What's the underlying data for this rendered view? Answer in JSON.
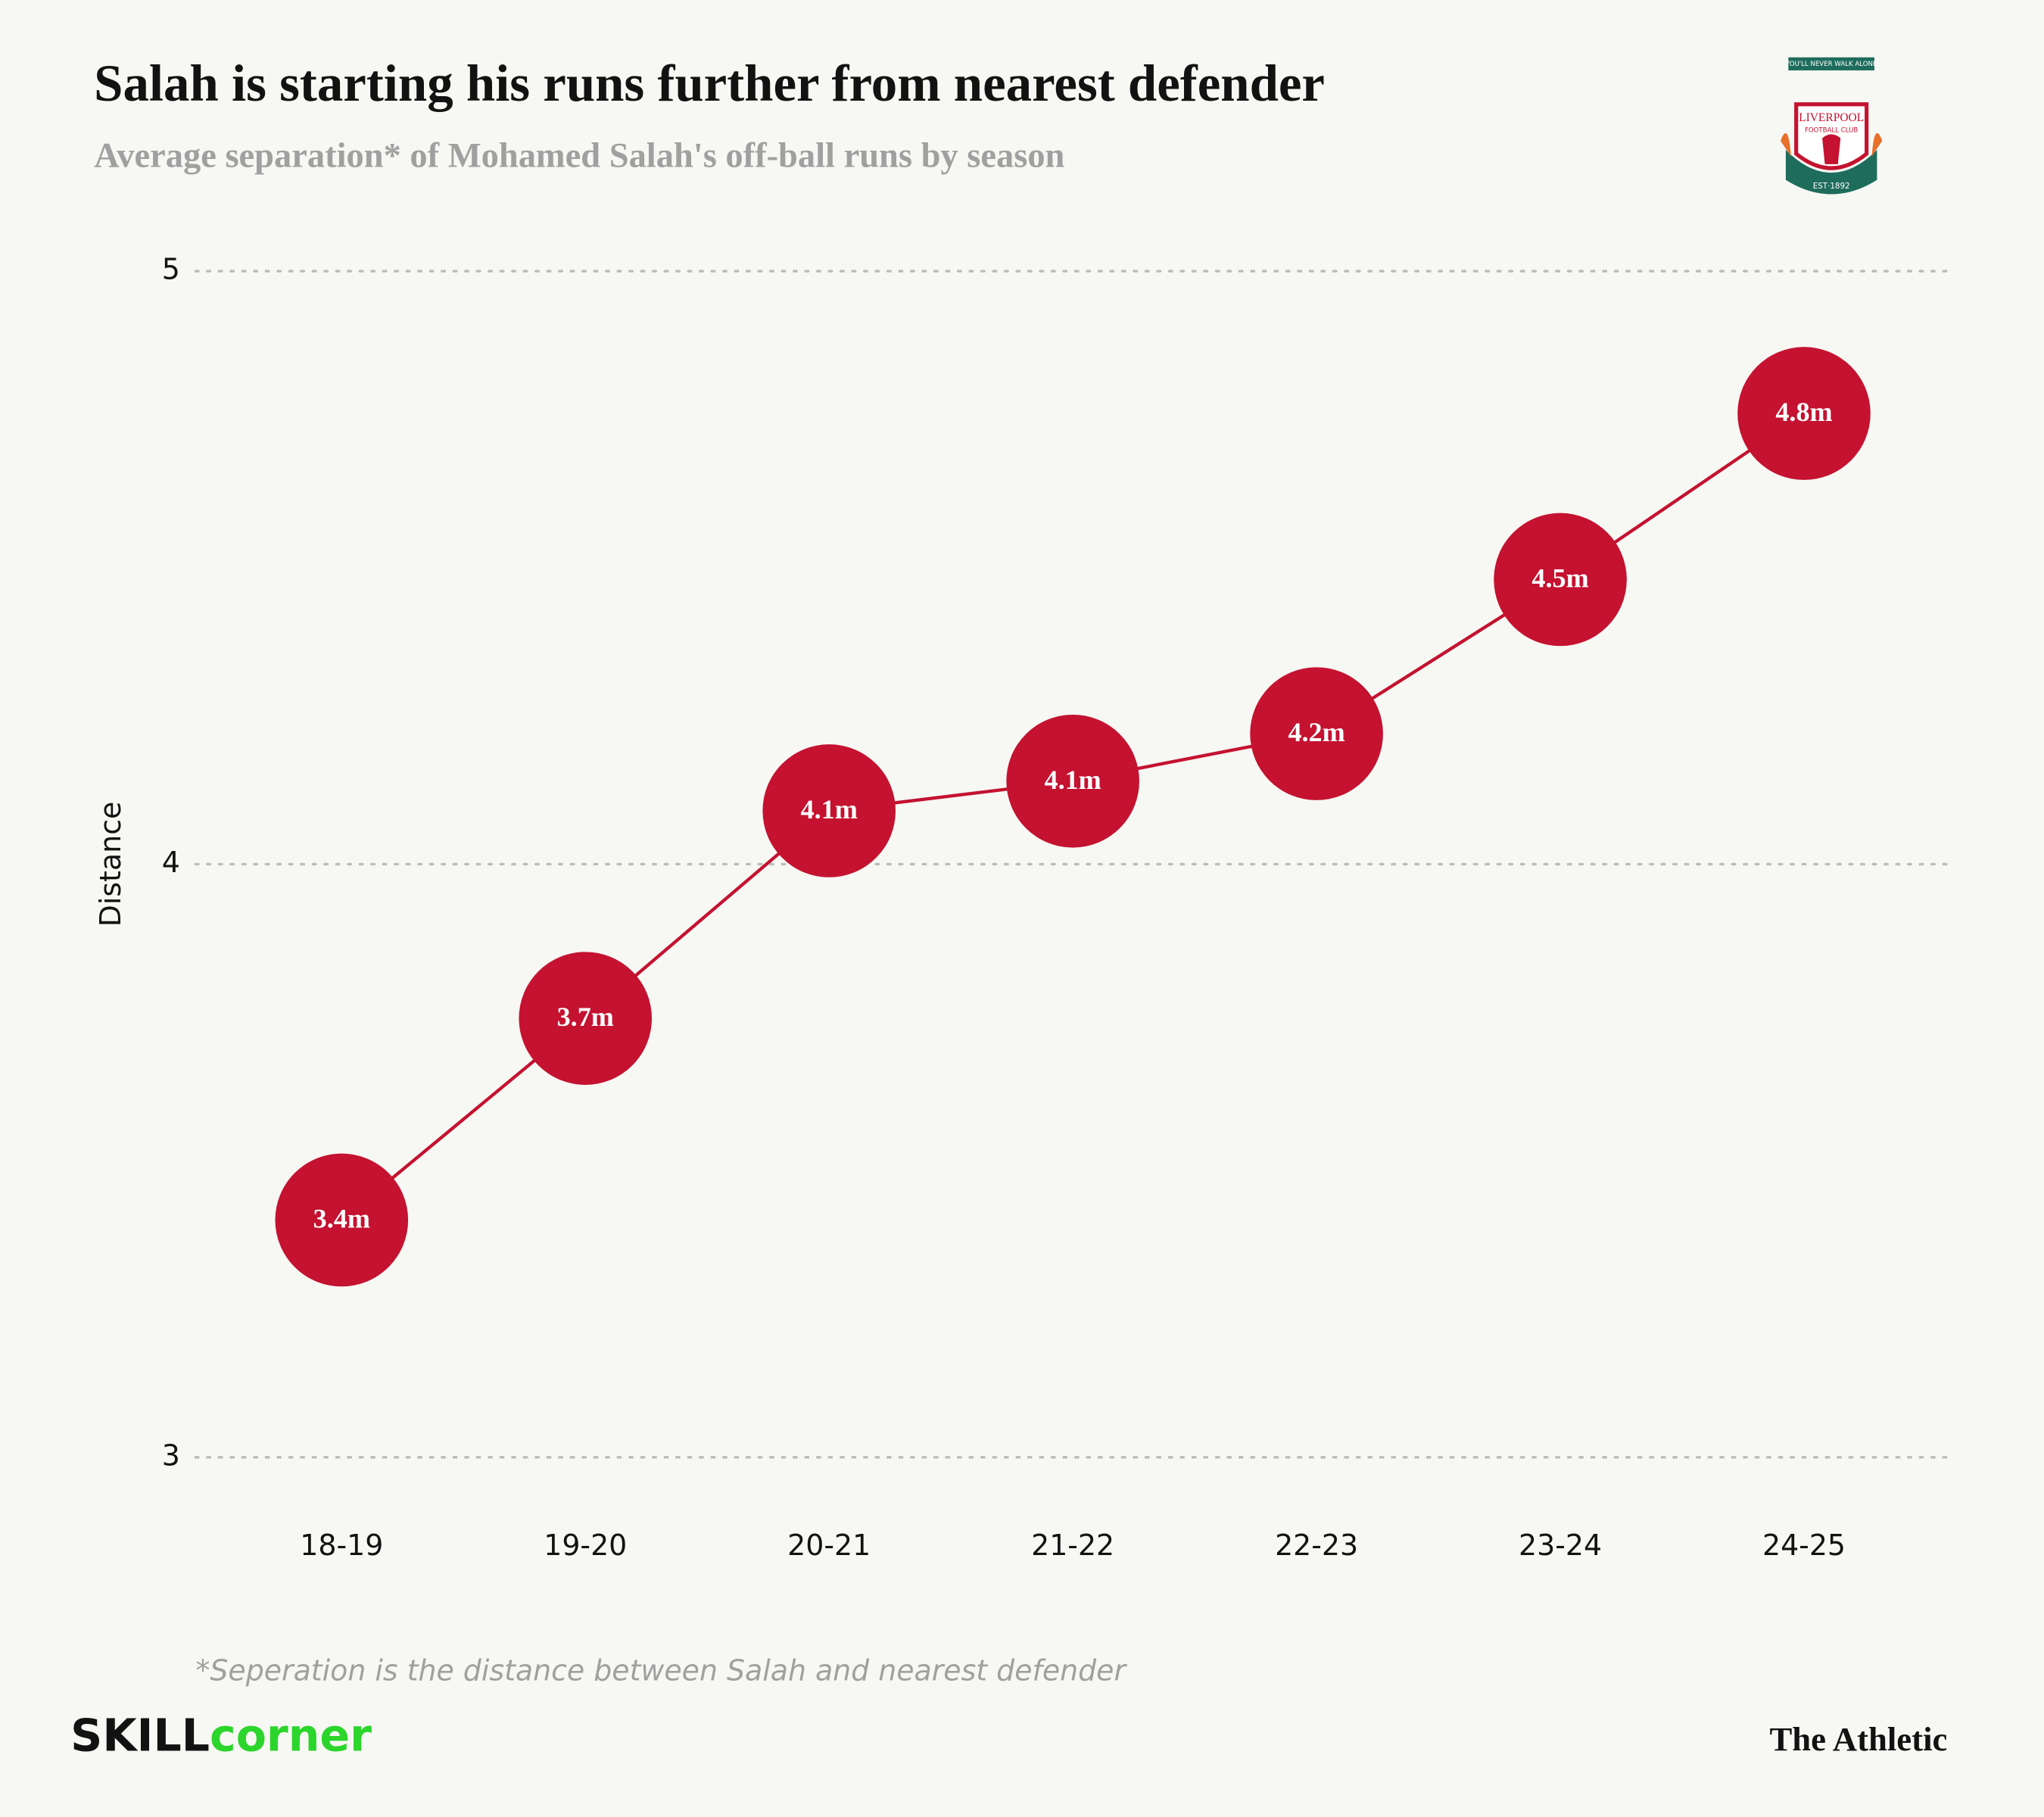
{
  "chart_data": {
    "type": "line",
    "title": "Salah is starting his runs further from nearest defender",
    "subtitle": "Average separation* of Mohamed Salah's off-ball runs by season",
    "y_label": "Distance",
    "categories": [
      "18-19",
      "19-20",
      "20-21",
      "21-22",
      "22-23",
      "23-24",
      "24-25"
    ],
    "values": [
      3.4,
      3.74,
      4.09,
      4.14,
      4.22,
      4.48,
      4.76
    ],
    "value_labels": [
      "3.4m",
      "3.7m",
      "4.1m",
      "4.1m",
      "4.2m",
      "4.5m",
      "4.8m"
    ],
    "color": "#c41230",
    "ylim": [
      3,
      5
    ],
    "yticks": [
      3,
      4,
      5
    ],
    "grid": true,
    "footnote": "*Seperation is the distance between Salah and nearest defender"
  },
  "branding": {
    "left_1": "SKILL",
    "left_2": "corner",
    "right": "The Athletic"
  },
  "logo": {
    "motto": "YOU'LL NEVER WALK ALONE",
    "name": "LIVERPOOL",
    "sub": "FOOTBALL CLUB",
    "est": "EST·1892"
  }
}
